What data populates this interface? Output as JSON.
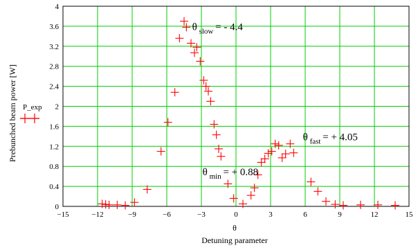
{
  "chart_data": {
    "type": "scatter",
    "xlabel_symbol": "θ",
    "xlabel": "Detuning parameter",
    "ylabel": "Prebunched beam power [W]",
    "xlim": [
      -15,
      15
    ],
    "ylim": [
      0,
      4
    ],
    "xticks": [
      -15,
      -12,
      -9,
      -6,
      -3,
      0,
      3,
      6,
      9,
      12,
      15
    ],
    "xtick_labels": [
      "−15",
      "−12",
      "−9",
      "−6",
      "−3",
      "0",
      "3",
      "6",
      "9",
      "12",
      "15"
    ],
    "yticks": [
      0,
      0.4,
      0.8,
      1.2,
      1.6,
      2,
      2.4,
      2.8,
      3.2,
      3.6,
      4
    ],
    "ytick_labels": [
      "0",
      "0.4",
      "0.8",
      "1.2",
      "1.6",
      "2",
      "2.4",
      "2.8",
      "3.2",
      "3.6",
      "4"
    ],
    "grid": true,
    "legend": {
      "label": "P_exp",
      "position": "left"
    },
    "marker": "+",
    "marker_color": "#ff0000",
    "grid_color": "#00cc00",
    "series": [
      {
        "name": "P_exp",
        "x": [
          -11.6,
          -11.3,
          -11.0,
          -10.3,
          -9.6,
          -8.8,
          -7.7,
          -6.5,
          -5.9,
          -5.3,
          -4.9,
          -4.5,
          -4.3,
          -3.9,
          -3.6,
          -3.4,
          -3.1,
          -2.8,
          -2.6,
          -2.4,
          -2.2,
          -1.9,
          -1.7,
          -1.5,
          -1.3,
          -0.7,
          -0.2,
          0.6,
          1.3,
          1.6,
          1.9,
          2.2,
          2.5,
          2.8,
          3.1,
          3.4,
          3.7,
          4.0,
          4.3,
          4.7,
          5.0,
          6.5,
          7.1,
          7.8,
          8.6,
          9.3,
          10.8,
          12.3,
          13.8
        ],
        "y": [
          0.05,
          0.04,
          0.03,
          0.03,
          0.02,
          0.08,
          0.34,
          1.1,
          1.68,
          2.28,
          3.36,
          3.7,
          3.58,
          3.26,
          3.07,
          3.18,
          2.9,
          2.52,
          2.4,
          2.3,
          2.1,
          1.64,
          1.43,
          1.15,
          1.0,
          0.45,
          0.16,
          0.05,
          0.22,
          0.37,
          0.63,
          0.88,
          0.95,
          1.06,
          1.1,
          1.25,
          1.22,
          0.97,
          1.05,
          1.25,
          1.07,
          0.49,
          0.3,
          0.1,
          0.04,
          0.02,
          0.03,
          0.03,
          0.02
        ]
      }
    ],
    "annotations": [
      {
        "symbol": "θ",
        "subscript": "slow",
        "text": "= - 4.4",
        "x": -3.8,
        "y": 3.52
      },
      {
        "symbol": "θ",
        "subscript": "fast",
        "text": "= + 4.05",
        "x": 5.8,
        "y": 1.32
      },
      {
        "symbol": "θ",
        "subscript": "min",
        "text": "= + 0.88",
        "x": -2.9,
        "y": 0.62
      }
    ]
  }
}
